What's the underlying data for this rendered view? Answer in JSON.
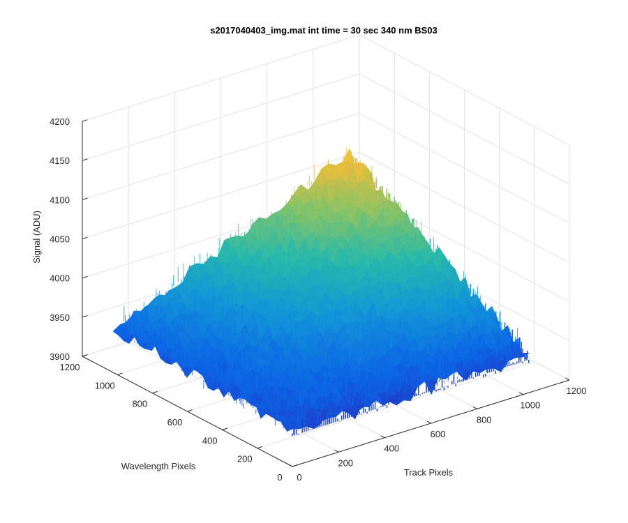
{
  "chart_data": {
    "type": "surface",
    "title": "s2017040403_img.mat int time = 30 sec  340 nm BS03",
    "xlabel": "Track Pixels",
    "ylabel": "Wavelength Pixels",
    "zlabel": "Signal (ADU)",
    "xlim": [
      0,
      1200
    ],
    "ylim": [
      0,
      1200
    ],
    "zlim": [
      3900,
      4200
    ],
    "xticks": [
      "0",
      "200",
      "400",
      "600",
      "800",
      "1000",
      "1200"
    ],
    "yticks": [
      "0",
      "200",
      "400",
      "600",
      "800",
      "1000",
      "1200"
    ],
    "zticks": [
      "3900",
      "3950",
      "4000",
      "4050",
      "4100",
      "4150",
      "4200"
    ],
    "grid": true,
    "colormap": "parula",
    "data_extent": {
      "track_pixels": [
        0,
        1024
      ],
      "wavelength_pixels": [
        0,
        1024
      ]
    },
    "surface": {
      "corner_values": {
        "track0_wave0": 3945,
        "track1024_wave0": 3948,
        "track0_wave1024": 3955,
        "track1024_wave1024": 4085
      },
      "noise_amplitude": 20
    },
    "colors": {
      "low": "#0b5ee8",
      "mid": "#2ab2a0",
      "high": "#ebc03a",
      "axis": "#262626",
      "grid": "#e2e2e2"
    }
  }
}
